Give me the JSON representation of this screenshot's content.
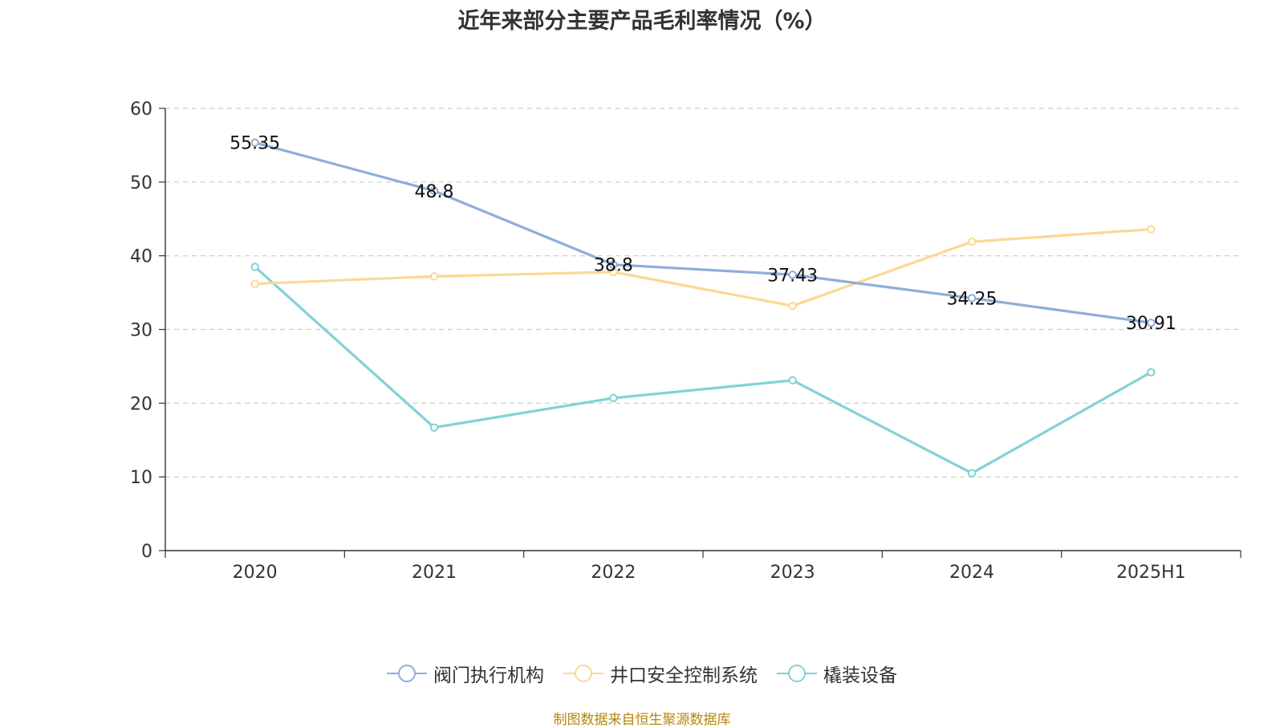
{
  "chart_data": {
    "type": "line",
    "title": "近年来部分主要产品毛利率情况（%）",
    "categories": [
      "2020",
      "2021",
      "2022",
      "2023",
      "2024",
      "2025H1"
    ],
    "ylim": [
      0,
      60
    ],
    "yticks": [
      0,
      10,
      20,
      30,
      40,
      50,
      60
    ],
    "grid": true,
    "legend_position": "bottom",
    "series": [
      {
        "name": "阀门执行机构",
        "color": "#8eaed8",
        "values": [
          55.35,
          48.8,
          38.8,
          37.43,
          34.25,
          30.91
        ],
        "labels": [
          "55.35",
          "48.8",
          "38.8",
          "37.43",
          "34.25",
          "30.91"
        ]
      },
      {
        "name": "井口安全控制系统",
        "color": "#fbd894",
        "values": [
          36.2,
          37.2,
          37.8,
          33.2,
          41.9,
          43.6
        ]
      },
      {
        "name": "橇装设备",
        "color": "#82d2d6",
        "values": [
          38.5,
          16.7,
          20.7,
          23.1,
          10.5,
          24.2
        ]
      }
    ]
  },
  "source_note": "制图数据来自恒生聚源数据库"
}
